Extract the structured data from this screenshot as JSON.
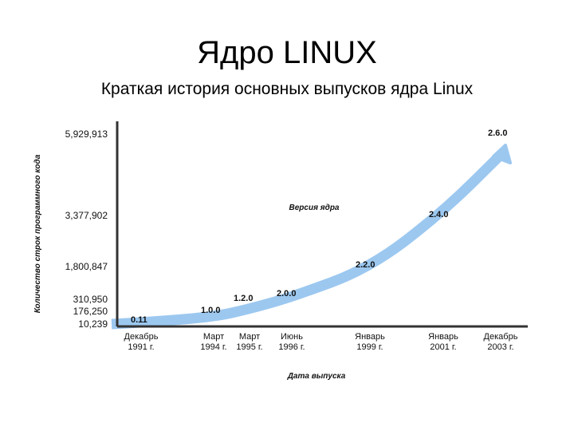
{
  "slide": {
    "title": "Ядро LINUX",
    "subtitle": "Краткая история основных выпусков ядра Linux"
  },
  "chart_data": {
    "type": "line",
    "xlabel": "Дата выпуска",
    "ylabel": "Количество строк программного кода",
    "series_label": "Версия ядра",
    "categories": [
      [
        "Декабрь",
        "1991 г."
      ],
      [
        "Март",
        "1994 г."
      ],
      [
        "Март",
        "1995 г."
      ],
      [
        "Июнь",
        "1996 г."
      ],
      [
        "Январь",
        "1999 г."
      ],
      [
        "Январь",
        "2001 г."
      ],
      [
        "Декабрь",
        "2003 г."
      ]
    ],
    "y_tick_labels": [
      "5,929,913",
      "3,377,902",
      "1,800,847",
      "310,950",
      "176,250",
      "10,239"
    ],
    "versions": [
      "0.11",
      "1.0.0",
      "1.2.0",
      "2.0.0",
      "2.2.0",
      "2.4.0",
      "2.6.0"
    ],
    "values": [
      10239,
      176250,
      310950,
      777956,
      1800847,
      3377902,
      5929913
    ],
    "arrow_color": "#9cc8f0",
    "axis_color": "#333333"
  }
}
